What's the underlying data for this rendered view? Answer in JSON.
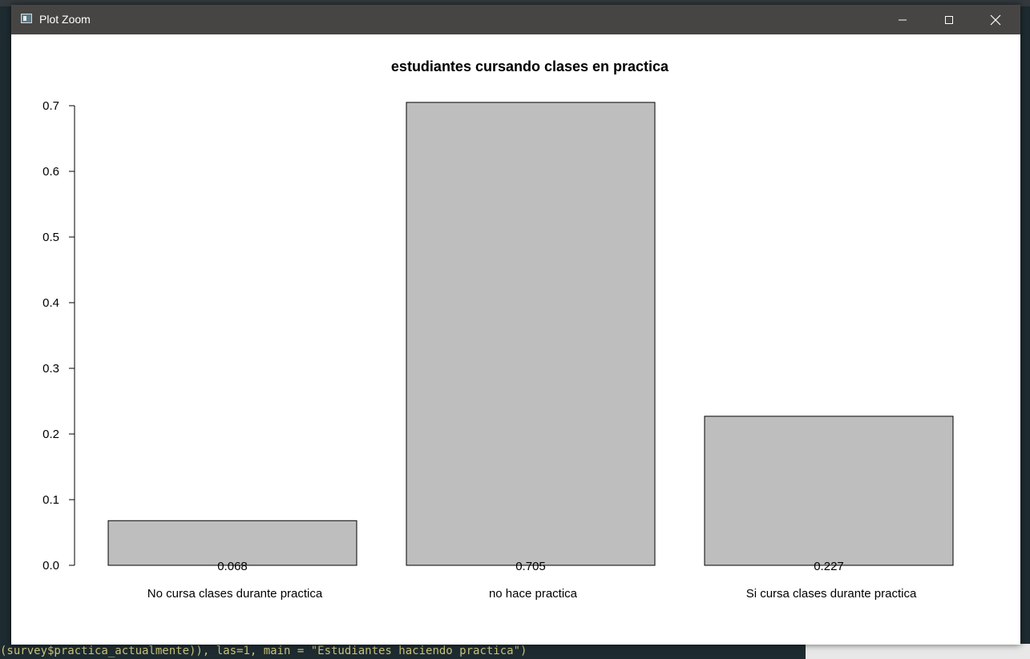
{
  "window": {
    "title": "Plot Zoom",
    "controls": {
      "minimize": "minimize-icon",
      "maximize": "maximize-icon",
      "close": "close-icon"
    }
  },
  "background": {
    "console_line": "(survey$practica_actualmente)), las=1, main = \"Estudiantes haciendo practica\")"
  },
  "chart_data": {
    "type": "bar",
    "title": "estudiantes cursando clases en practica",
    "categories": [
      "No cursa clases durante practica",
      "no hace practica",
      "Si cursa clases durante practica"
    ],
    "values": [
      0.068,
      0.705,
      0.227
    ],
    "value_labels": [
      "0.068",
      "0.705",
      "0.227"
    ],
    "ylim": [
      0,
      0.7
    ],
    "yticks": [
      0.0,
      0.1,
      0.2,
      0.3,
      0.4,
      0.5,
      0.6,
      0.7
    ],
    "ytick_labels": [
      "0.0",
      "0.1",
      "0.2",
      "0.3",
      "0.4",
      "0.5",
      "0.6",
      "0.7"
    ],
    "bar_color": "#bebebe",
    "grid": false,
    "xlabel": "",
    "ylabel": ""
  }
}
